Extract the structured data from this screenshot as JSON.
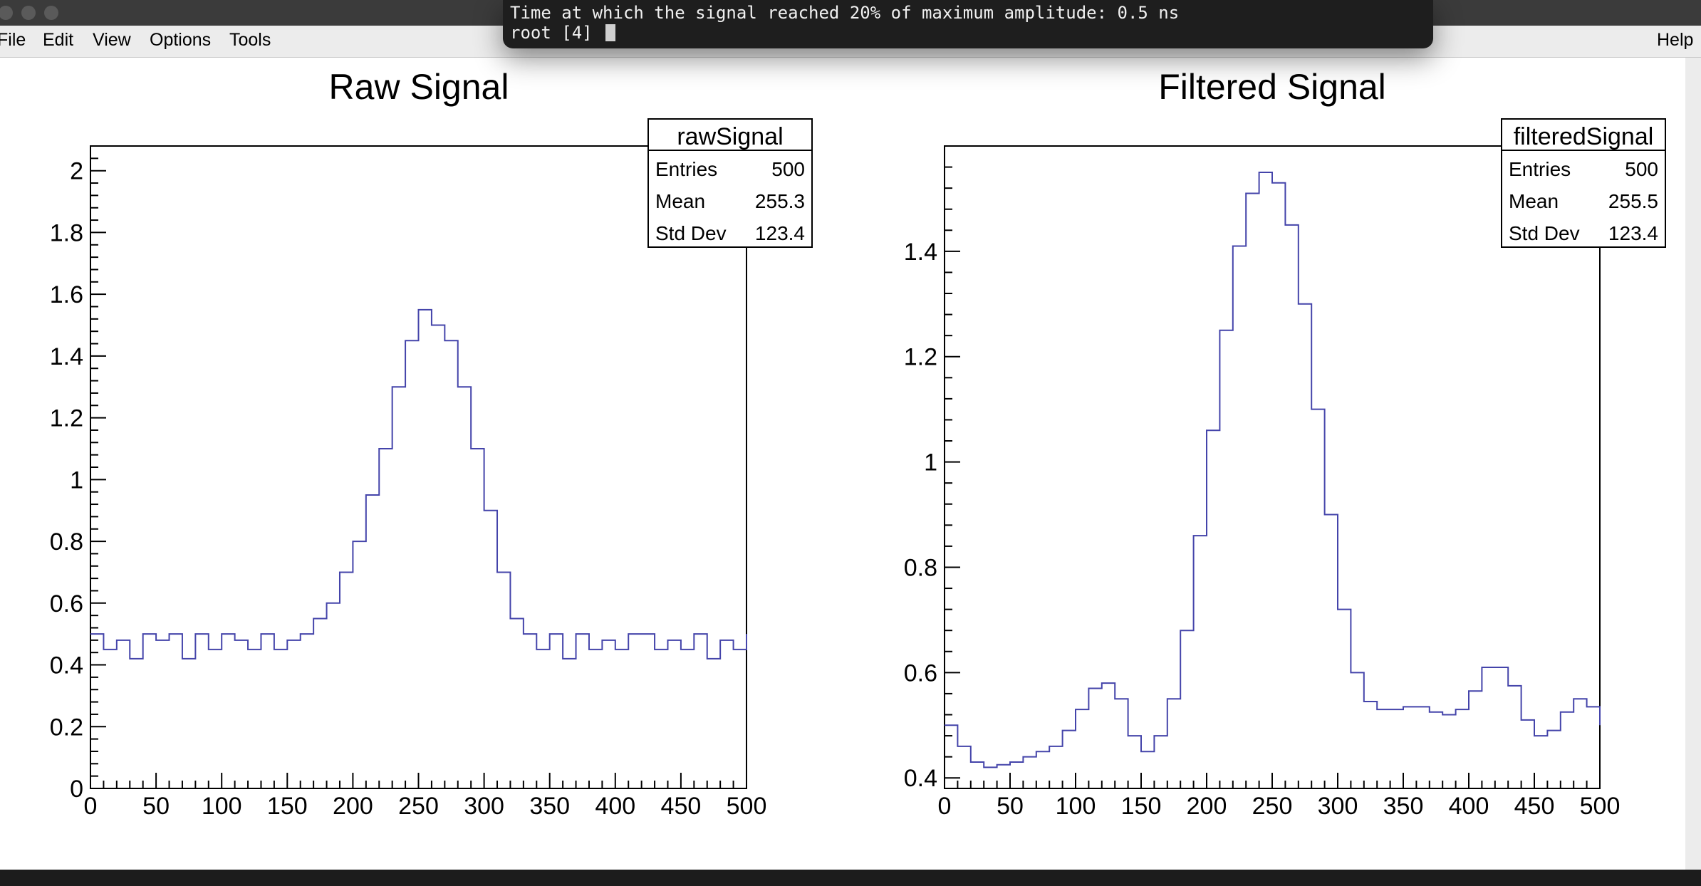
{
  "menu": {
    "file": "File",
    "edit": "Edit",
    "view": "View",
    "options": "Options",
    "tools": "Tools",
    "help": "Help"
  },
  "terminal": {
    "line1": "Time at which the signal reached 20% of maximum amplitude: 0.5 ns",
    "line2": "root [4] "
  },
  "colors": {
    "histogram_line": "#4444aa",
    "raw_fill": "#8888cc"
  },
  "chart_data": [
    {
      "type": "line",
      "title": "Raw Signal",
      "xlabel": "",
      "ylabel": "",
      "xlim": [
        0,
        500
      ],
      "ylim": [
        0,
        2.08
      ],
      "xticks": [
        "0",
        "50",
        "100",
        "150",
        "200",
        "250",
        "300",
        "350",
        "400",
        "450",
        "500"
      ],
      "yticks": [
        "0",
        "0.2",
        "0.4",
        "0.6",
        "0.8",
        "1",
        "1.2",
        "1.4",
        "1.6",
        "1.8",
        "2"
      ],
      "stats": {
        "name": "rawSignal",
        "entries_label": "Entries",
        "entries": "500",
        "mean_label": "Mean",
        "mean": "255.3",
        "std_label": "Std Dev",
        "std": "123.4"
      },
      "series": [
        {
          "x": [
            0,
            10,
            20,
            30,
            40,
            50,
            60,
            70,
            80,
            90,
            100,
            110,
            120,
            130,
            140,
            150,
            160,
            170,
            180,
            190,
            200,
            210,
            220,
            230,
            240,
            250,
            260,
            270,
            280,
            290,
            300,
            310,
            320,
            330,
            340,
            350,
            360,
            370,
            380,
            390,
            400,
            410,
            420,
            430,
            440,
            450,
            460,
            470,
            480,
            490,
            500
          ],
          "y": [
            0.5,
            0.45,
            0.48,
            0.42,
            0.5,
            0.48,
            0.5,
            0.42,
            0.5,
            0.45,
            0.5,
            0.48,
            0.45,
            0.5,
            0.45,
            0.48,
            0.5,
            0.55,
            0.6,
            0.7,
            0.8,
            0.95,
            1.1,
            1.3,
            1.45,
            1.55,
            1.5,
            1.45,
            1.3,
            1.1,
            0.9,
            0.7,
            0.55,
            0.5,
            0.45,
            0.5,
            0.42,
            0.5,
            0.45,
            0.48,
            0.45,
            0.5,
            0.5,
            0.45,
            0.48,
            0.45,
            0.5,
            0.42,
            0.48,
            0.45,
            0.5
          ]
        }
      ]
    },
    {
      "type": "line",
      "title": "Filtered Signal",
      "xlabel": "",
      "ylabel": "",
      "xlim": [
        0,
        500
      ],
      "ylim": [
        0.38,
        1.6
      ],
      "xticks": [
        "0",
        "50",
        "100",
        "150",
        "200",
        "250",
        "300",
        "350",
        "400",
        "450",
        "500"
      ],
      "yticks": [
        "0.4",
        "0.6",
        "0.8",
        "1",
        "1.2",
        "1.4"
      ],
      "stats": {
        "name": "filteredSignal",
        "entries_label": "Entries",
        "entries": "500",
        "mean_label": "Mean",
        "mean": "255.5",
        "std_label": "Std Dev",
        "std": "123.4"
      },
      "series": [
        {
          "x": [
            0,
            10,
            20,
            30,
            40,
            50,
            60,
            70,
            80,
            90,
            100,
            110,
            120,
            130,
            140,
            150,
            160,
            170,
            180,
            190,
            200,
            210,
            220,
            230,
            240,
            250,
            260,
            270,
            280,
            290,
            300,
            310,
            320,
            330,
            340,
            350,
            360,
            370,
            380,
            390,
            400,
            410,
            420,
            430,
            440,
            450,
            460,
            470,
            480,
            490,
            500
          ],
          "y": [
            0.5,
            0.46,
            0.43,
            0.42,
            0.425,
            0.43,
            0.44,
            0.45,
            0.46,
            0.49,
            0.53,
            0.57,
            0.58,
            0.55,
            0.48,
            0.45,
            0.48,
            0.55,
            0.68,
            0.86,
            1.06,
            1.25,
            1.41,
            1.51,
            1.55,
            1.53,
            1.45,
            1.3,
            1.1,
            0.9,
            0.72,
            0.6,
            0.545,
            0.53,
            0.53,
            0.535,
            0.535,
            0.525,
            0.52,
            0.53,
            0.565,
            0.61,
            0.61,
            0.575,
            0.51,
            0.48,
            0.49,
            0.525,
            0.55,
            0.535,
            0.5
          ]
        }
      ]
    }
  ]
}
